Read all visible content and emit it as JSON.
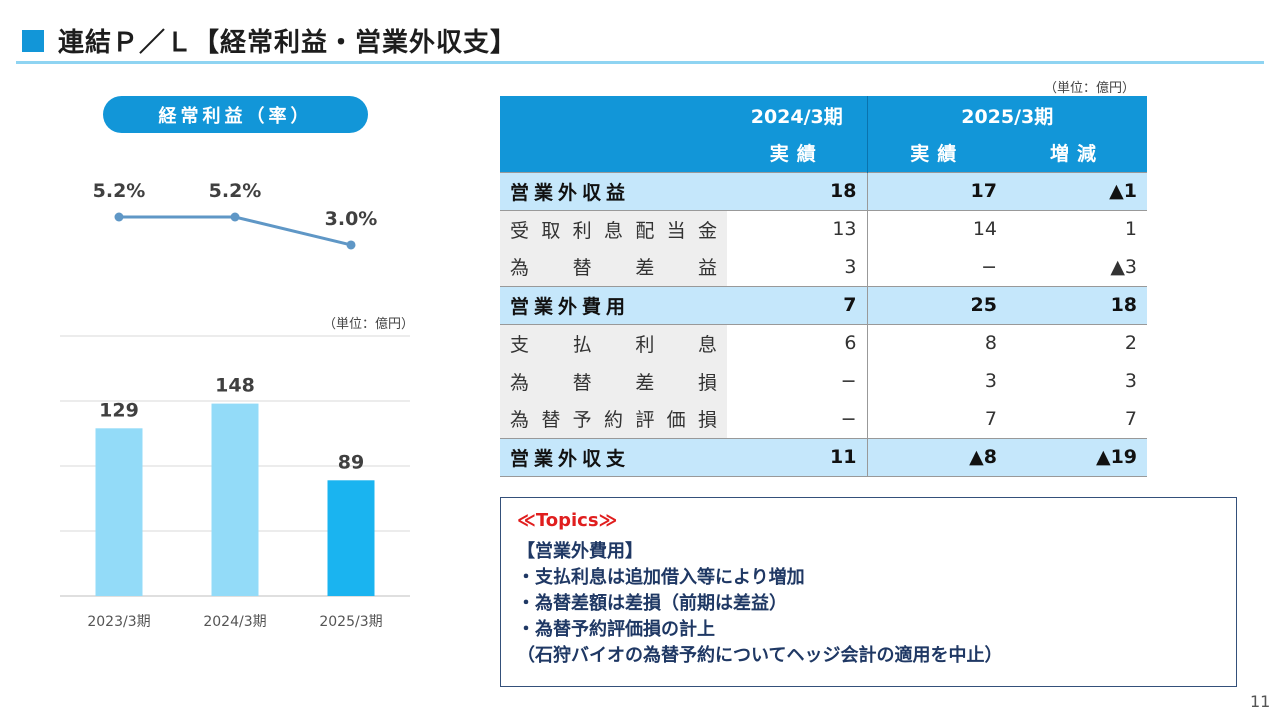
{
  "header": {
    "title": "連結Ｐ／Ｌ【経常利益・営業外収支】"
  },
  "left_panel": {
    "pill_label": "経常利益（率）",
    "unit_label": "（単位：億円）"
  },
  "chart_data": [
    {
      "type": "line",
      "categories": [
        "2023/3期",
        "2024/3期",
        "2025/3期"
      ],
      "values": [
        5.2,
        5.2,
        3.0
      ],
      "value_labels": [
        "5.2%",
        "5.2%",
        "3.0%"
      ],
      "color": "#5f97c6"
    },
    {
      "type": "bar",
      "categories": [
        "2023/3期",
        "2024/3期",
        "2025/3期"
      ],
      "values": [
        129,
        148,
        89
      ],
      "ylim": [
        0,
        200
      ],
      "grid": true,
      "colors": [
        "#93dbf8",
        "#93dbf8",
        "#1ab4f0"
      ]
    }
  ],
  "table": {
    "unit_label": "（単位：億円）",
    "header_years": [
      "2024/3期",
      "2025/3期"
    ],
    "header_sub": [
      "実績",
      "実績",
      "増減"
    ],
    "rows": [
      {
        "label": "営業外収益",
        "values": [
          "18",
          "17",
          "▲1"
        ],
        "kind": "sum"
      },
      {
        "label": "受取利息配当金",
        "values": [
          "13",
          "14",
          "1"
        ],
        "kind": "detail"
      },
      {
        "label": "為替差益",
        "values": [
          "3",
          "−",
          "▲3"
        ],
        "kind": "detail"
      },
      {
        "label": "営業外費用",
        "values": [
          "7",
          "25",
          "18"
        ],
        "kind": "sum"
      },
      {
        "label": "支払利息",
        "values": [
          "6",
          "8",
          "2"
        ],
        "kind": "detail"
      },
      {
        "label": "為替差損",
        "values": [
          "−",
          "3",
          "3"
        ],
        "kind": "detail"
      },
      {
        "label": "為替予約評価損",
        "values": [
          "−",
          "7",
          "7"
        ],
        "kind": "detail"
      },
      {
        "label": "営業外収支",
        "values": [
          "11",
          "▲8",
          "▲19"
        ],
        "kind": "sum"
      }
    ]
  },
  "topics": {
    "title": "≪Topics≫",
    "lines": [
      "【営業外費用】",
      "・支払利息は追加借入等により増加",
      "・為替差額は差損（前期は差益）",
      "・為替予約評価損の計上",
      "（石狩バイオの為替予約についてヘッジ会計の適用を中止）"
    ]
  },
  "page_number": "11"
}
